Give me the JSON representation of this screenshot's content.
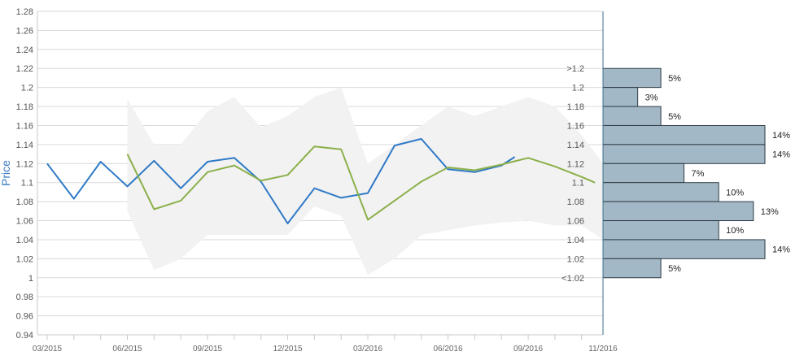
{
  "chart_data": {
    "type": "line",
    "ylabel": "Price",
    "ylim": [
      0.94,
      1.28
    ],
    "yticks": [
      "0.94",
      "0.96",
      "0.98",
      "1",
      "1.02",
      "1.04",
      "1.06",
      "1.08",
      "1.1",
      "1.12",
      "1.14",
      "1.16",
      "1.18",
      "1.2",
      "1.22",
      "1.24",
      "1.26",
      "1.28"
    ],
    "xlim": [
      0,
      20.8
    ],
    "xticks": [
      {
        "pos": 0,
        "label": "03/2015"
      },
      {
        "pos": 3,
        "label": "06/2015"
      },
      {
        "pos": 6,
        "label": "09/2015"
      },
      {
        "pos": 9,
        "label": "12/2015"
      },
      {
        "pos": 12,
        "label": "03/2016"
      },
      {
        "pos": 15,
        "label": "06/2016"
      },
      {
        "pos": 18,
        "label": "09/2016"
      },
      {
        "pos": 20.8,
        "label": "11/2016"
      }
    ],
    "grid": true,
    "series": [
      {
        "color": "#2f7ac7",
        "points": [
          [
            0,
            1.12
          ],
          [
            1,
            1.083
          ],
          [
            2,
            1.122
          ],
          [
            3,
            1.096
          ],
          [
            4,
            1.123
          ],
          [
            5,
            1.094
          ],
          [
            6,
            1.122
          ],
          [
            7,
            1.126
          ],
          [
            8,
            1.101
          ],
          [
            9,
            1.057
          ],
          [
            10,
            1.094
          ],
          [
            11,
            1.084
          ],
          [
            12,
            1.089
          ],
          [
            13,
            1.139
          ],
          [
            14,
            1.146
          ],
          [
            15,
            1.114
          ],
          [
            16,
            1.111
          ],
          [
            17,
            1.118
          ],
          [
            17.5,
            1.127
          ]
        ]
      },
      {
        "color": "#8bb04a",
        "points": [
          [
            3,
            1.13
          ],
          [
            4,
            1.072
          ],
          [
            5,
            1.081
          ],
          [
            6,
            1.111
          ],
          [
            7,
            1.118
          ],
          [
            8,
            1.102
          ],
          [
            9,
            1.108
          ],
          [
            10,
            1.138
          ],
          [
            11,
            1.135
          ],
          [
            12,
            1.061
          ],
          [
            13,
            1.081
          ],
          [
            14,
            1.101
          ],
          [
            15,
            1.116
          ],
          [
            16,
            1.113
          ],
          [
            17,
            1.119
          ],
          [
            18,
            1.126
          ],
          [
            19,
            1.117
          ],
          [
            20,
            1.106
          ],
          [
            20.5,
            1.1
          ]
        ]
      }
    ],
    "band": {
      "color": "#f2f2f2",
      "upper": [
        [
          3,
          1.188
        ],
        [
          4,
          1.14
        ],
        [
          5,
          1.14
        ],
        [
          6,
          1.175
        ],
        [
          7,
          1.19
        ],
        [
          8,
          1.158
        ],
        [
          9,
          1.17
        ],
        [
          10,
          1.19
        ],
        [
          11,
          1.2
        ],
        [
          12,
          1.12
        ],
        [
          13,
          1.14
        ],
        [
          14,
          1.16
        ],
        [
          15,
          1.18
        ],
        [
          16,
          1.17
        ],
        [
          17,
          1.18
        ],
        [
          18,
          1.19
        ],
        [
          19,
          1.18
        ],
        [
          20,
          1.15
        ],
        [
          20.8,
          1.12
        ]
      ],
      "lower": [
        [
          20.8,
          1.04
        ],
        [
          20,
          1.055
        ],
        [
          19,
          1.055
        ],
        [
          18,
          1.06
        ],
        [
          17,
          1.058
        ],
        [
          16,
          1.055
        ],
        [
          15,
          1.05
        ],
        [
          14,
          1.045
        ],
        [
          13,
          1.02
        ],
        [
          12,
          1.003
        ],
        [
          11,
          1.065
        ],
        [
          10,
          1.075
        ],
        [
          9,
          1.045
        ],
        [
          8,
          1.045
        ],
        [
          7,
          1.045
        ],
        [
          6,
          1.045
        ],
        [
          5,
          1.02
        ],
        [
          4,
          1.008
        ],
        [
          3,
          1.07
        ]
      ]
    },
    "distribution": {
      "color": "#a3b8c6",
      "edge": "#2e3b44",
      "bins": [
        {
          "label": ">1.2",
          "low": 1.2,
          "high": 1.22,
          "pct": "5%",
          "value": 5
        },
        {
          "label": "1.2",
          "low": 1.18,
          "high": 1.2,
          "pct": "3%",
          "value": 3
        },
        {
          "label": "1.18",
          "low": 1.16,
          "high": 1.18,
          "pct": "5%",
          "value": 5
        },
        {
          "label": "1.16",
          "low": 1.14,
          "high": 1.16,
          "pct": "14%",
          "value": 14
        },
        {
          "label": "1.14",
          "low": 1.12,
          "high": 1.14,
          "pct": "14%",
          "value": 14
        },
        {
          "label": "1.12",
          "low": 1.1,
          "high": 1.12,
          "pct": "7%",
          "value": 7
        },
        {
          "label": "1.1",
          "low": 1.08,
          "high": 1.1,
          "pct": "10%",
          "value": 10
        },
        {
          "label": "1.08",
          "low": 1.06,
          "high": 1.08,
          "pct": "13%",
          "value": 13
        },
        {
          "label": "1.06",
          "low": 1.04,
          "high": 1.06,
          "pct": "10%",
          "value": 10
        },
        {
          "label": "1.04",
          "low": 1.02,
          "high": 1.04,
          "pct": "14%",
          "value": 14
        },
        {
          "label": "1.02",
          "low": 1.0,
          "high": 1.02,
          "pct": "5%",
          "value": 5
        },
        {
          "label": "<1.02",
          "low": null,
          "high": null,
          "pct": "",
          "value": 0
        }
      ]
    }
  }
}
